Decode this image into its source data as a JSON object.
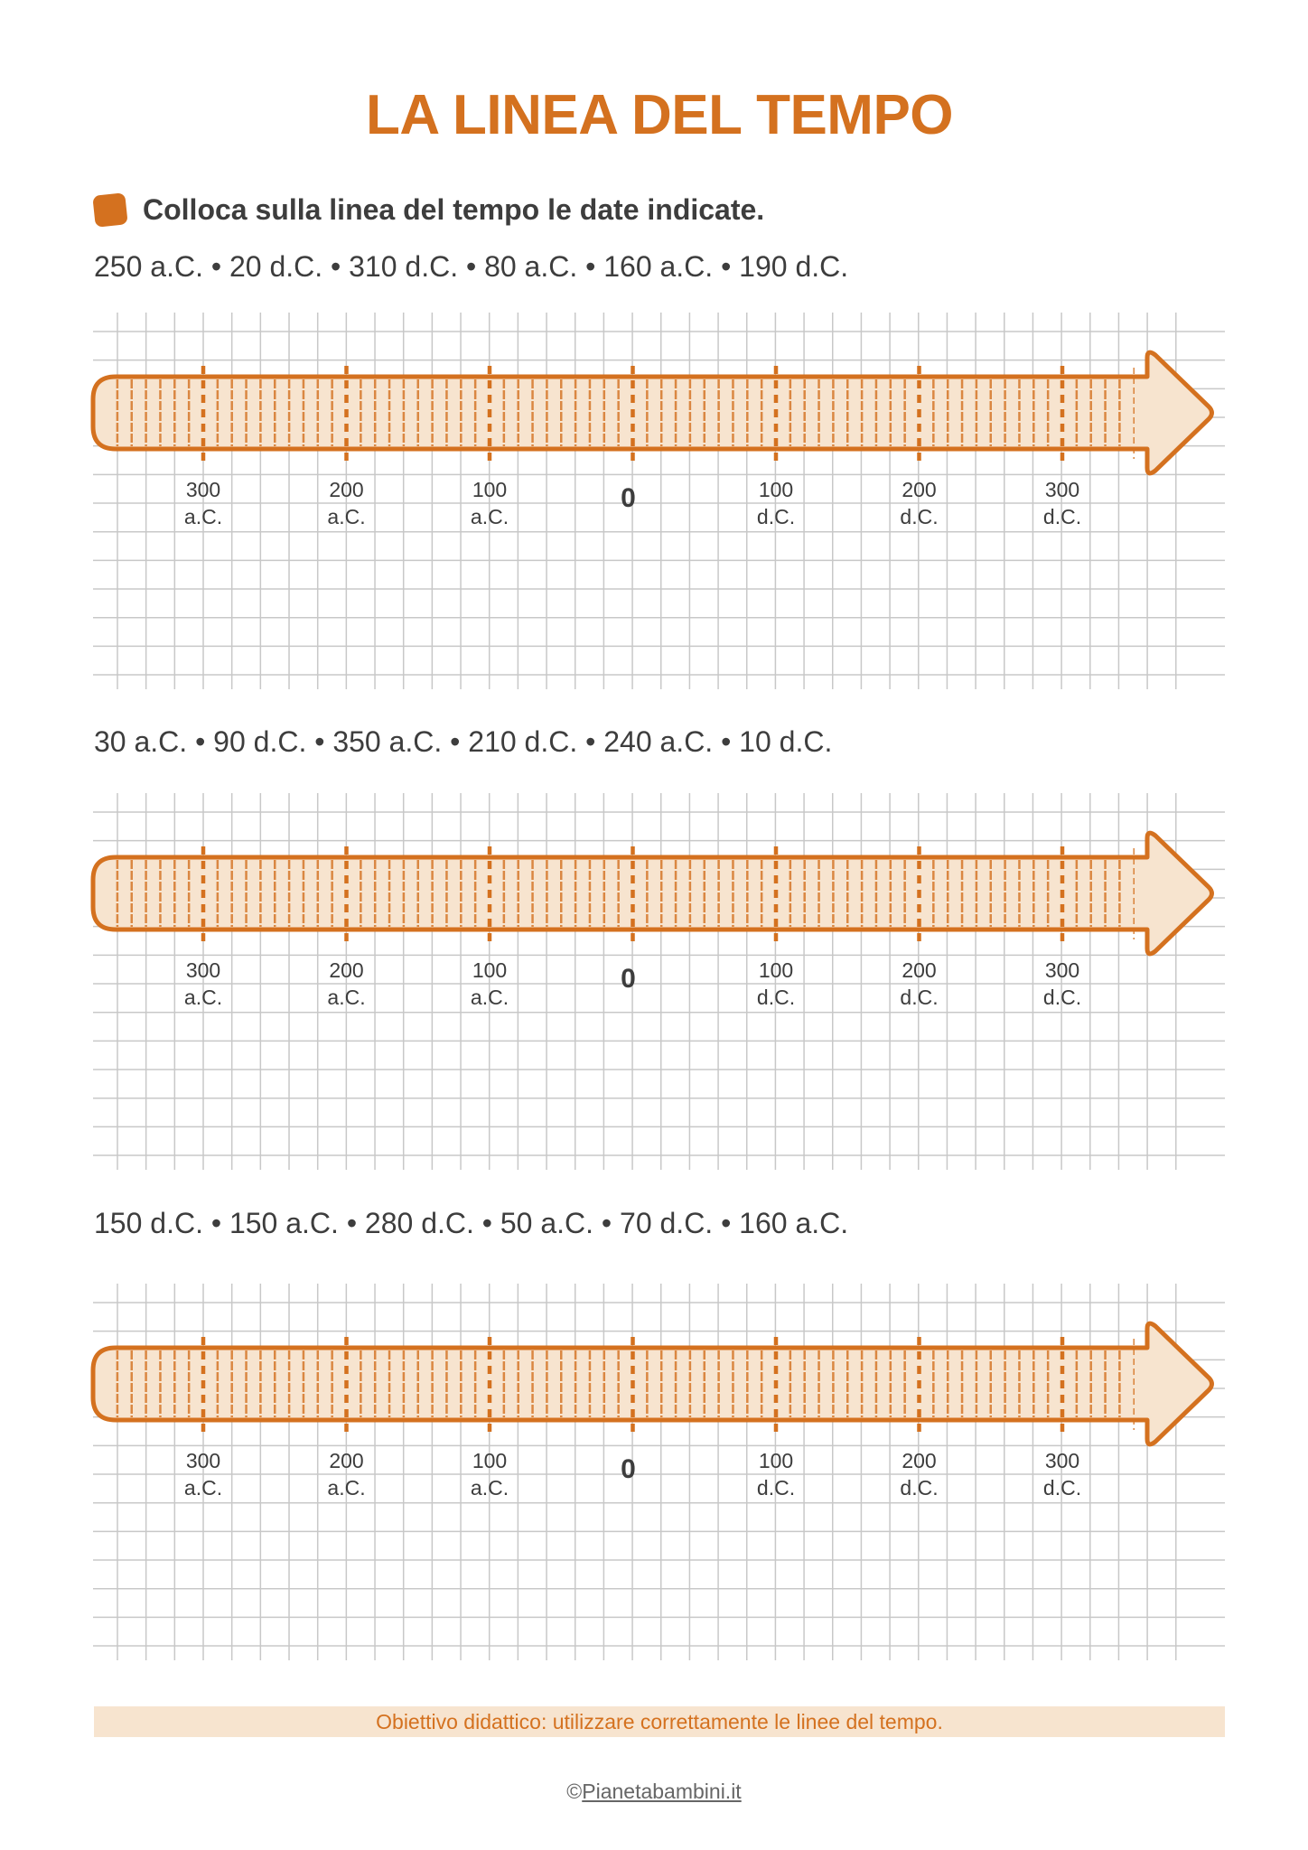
{
  "title": "LA LINEA DEL TEMPO",
  "instruction": {
    "icon": "orange-square-bullet-icon",
    "text": "Colloca sulla linea del tempo le date indicate."
  },
  "exercises": [
    {
      "dates": "250 a.C. • 20 d.C. • 310 d.C. • 80 a.C. • 160 a.C. • 190 d.C."
    },
    {
      "dates": "30 a.C. • 90 d.C. • 350 a.C. • 210 d.C. • 240 a.C. • 10 d.C."
    },
    {
      "dates": "150 d.C. • 150 a.C. • 280 d.C. • 50 a.C. • 70 d.C. • 160 a.C."
    }
  ],
  "timeline": {
    "ticks": [
      {
        "year": -300,
        "number": "300",
        "era": "a.C."
      },
      {
        "year": -200,
        "number": "200",
        "era": "a.C."
      },
      {
        "year": -100,
        "number": "100",
        "era": "a.C."
      },
      {
        "year": 0,
        "number": "0",
        "era": ""
      },
      {
        "year": 100,
        "number": "100",
        "era": "d.C."
      },
      {
        "year": 200,
        "number": "200",
        "era": "d.C."
      },
      {
        "year": 300,
        "number": "300",
        "era": "d.C."
      }
    ],
    "minor_step_years": 10,
    "range_years": [
      -360,
      350
    ]
  },
  "footer": {
    "objective": "Obiettivo didattico: utilizzare correttamente le linee del tempo.",
    "copyright_symbol": "©",
    "site": "Pianetabambini.it"
  },
  "colors": {
    "accent": "#d4711f",
    "arrow_fill": "#f7e4cf",
    "grid": "#c8c8c8",
    "text": "#3d3d3d"
  }
}
